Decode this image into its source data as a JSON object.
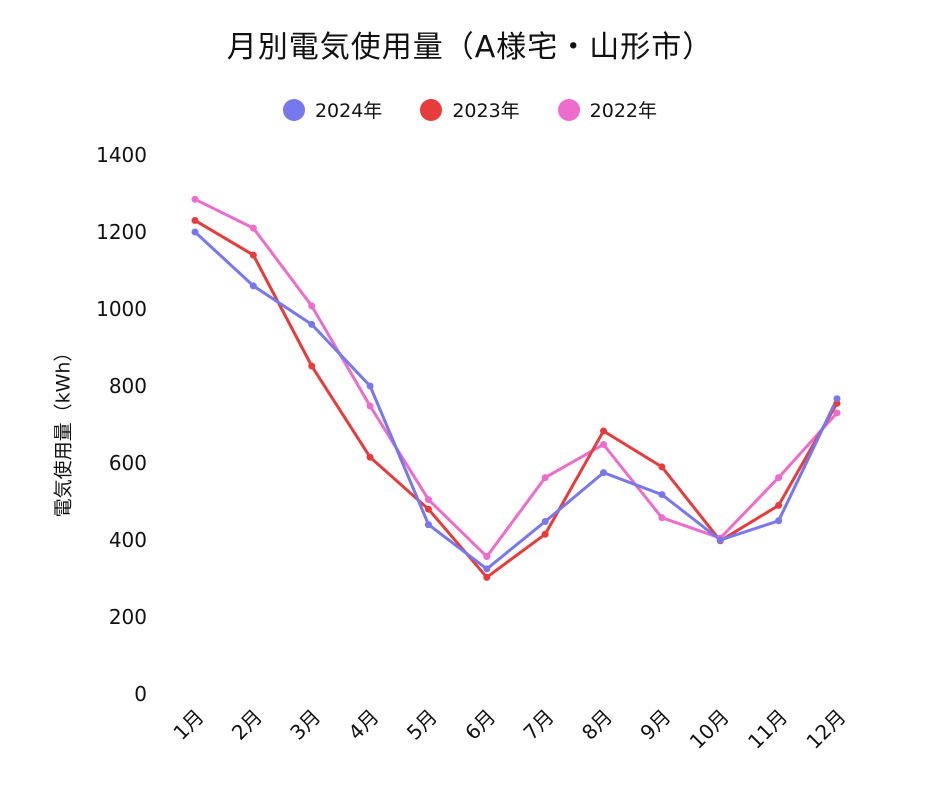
{
  "chart_data": {
    "type": "line",
    "title": "月別電気使用量（A様宅・山形市）",
    "ylabel": "電気使用量（kWh）",
    "xlabel": "",
    "categories": [
      "1月",
      "2月",
      "3月",
      "4月",
      "5月",
      "6月",
      "7月",
      "8月",
      "9月",
      "10月",
      "11月",
      "12月"
    ],
    "ylim": [
      0,
      1400
    ],
    "yticks": [
      0,
      200,
      400,
      600,
      800,
      1000,
      1200,
      1400
    ],
    "legend_position": "top-center",
    "grid": false,
    "series": [
      {
        "name": "2024年",
        "color": "#7777ee",
        "values": [
          1200,
          1060,
          960,
          800,
          440,
          325,
          448,
          575,
          518,
          400,
          450,
          767
        ]
      },
      {
        "name": "2023年",
        "color": "#e83c3c",
        "values": [
          1230,
          1140,
          852,
          615,
          480,
          303,
          415,
          683,
          590,
          398,
          490,
          755
        ]
      },
      {
        "name": "2022年",
        "color": "#ee6ccc",
        "values": [
          1285,
          1210,
          1008,
          748,
          505,
          357,
          562,
          648,
          458,
          405,
          562,
          730
        ]
      }
    ]
  }
}
